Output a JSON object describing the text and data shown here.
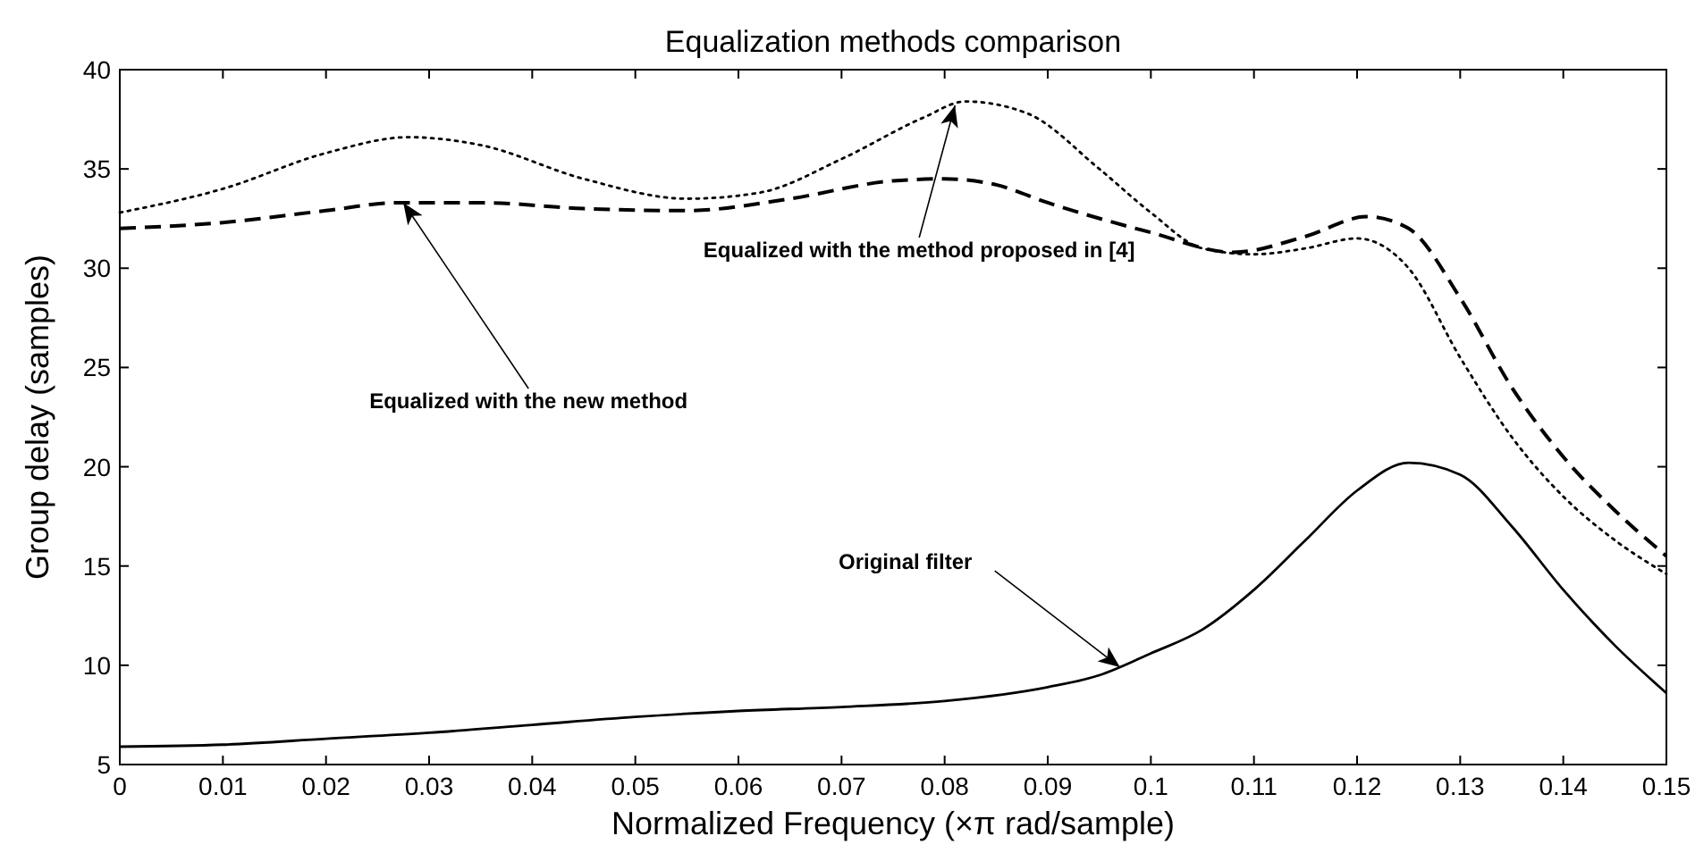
{
  "chart_data": {
    "type": "line",
    "title": "Equalization methods comparison",
    "xlabel": "Normalized Frequency (×π rad/sample)",
    "ylabel": "Group delay (samples)",
    "xlim": [
      0,
      0.15
    ],
    "ylim": [
      5,
      40
    ],
    "xticks": [
      0,
      0.01,
      0.02,
      0.03,
      0.04,
      0.05,
      0.06,
      0.07,
      0.08,
      0.09,
      0.1,
      0.11,
      0.12,
      0.13,
      0.14,
      0.15
    ],
    "yticks": [
      5,
      10,
      15,
      20,
      25,
      30,
      35,
      40
    ],
    "grid": false,
    "series": [
      {
        "color": "#000000",
        "line_style": "dotted",
        "x": [
          0,
          0.01,
          0.02,
          0.028,
          0.035,
          0.045,
          0.055,
          0.062,
          0.07,
          0.078,
          0.082,
          0.088,
          0.095,
          0.1,
          0.105,
          0.11,
          0.115,
          0.12,
          0.125,
          0.13,
          0.135,
          0.14,
          0.145,
          0.15
        ],
        "values": [
          32.8,
          34.0,
          35.8,
          36.6,
          36.2,
          34.5,
          33.5,
          33.8,
          35.5,
          37.6,
          38.4,
          37.8,
          35.0,
          32.8,
          31.0,
          30.7,
          31.0,
          31.5,
          30.0,
          25.5,
          21.5,
          18.5,
          16.3,
          14.6
        ]
      },
      {
        "color": "#000000",
        "line_style": "dashed",
        "x": [
          0,
          0.01,
          0.02,
          0.027,
          0.035,
          0.045,
          0.055,
          0.065,
          0.075,
          0.08,
          0.085,
          0.09,
          0.1,
          0.108,
          0.115,
          0.121,
          0.125,
          0.13,
          0.135,
          0.14,
          0.145,
          0.15
        ],
        "values": [
          32.0,
          32.3,
          32.9,
          33.3,
          33.3,
          33.0,
          32.9,
          33.5,
          34.4,
          34.5,
          34.2,
          33.3,
          31.8,
          30.8,
          31.6,
          32.6,
          32.0,
          28.5,
          24.0,
          20.5,
          17.8,
          15.5
        ]
      },
      {
        "color": "#000000",
        "line_style": "solid",
        "x": [
          0,
          0.01,
          0.02,
          0.03,
          0.04,
          0.05,
          0.06,
          0.07,
          0.08,
          0.09,
          0.095,
          0.1,
          0.105,
          0.11,
          0.115,
          0.12,
          0.125,
          0.13,
          0.135,
          0.14,
          0.145,
          0.15
        ],
        "values": [
          5.9,
          6.0,
          6.3,
          6.6,
          7.0,
          7.4,
          7.7,
          7.9,
          8.2,
          8.9,
          9.5,
          10.6,
          11.8,
          13.8,
          16.3,
          18.8,
          20.2,
          19.6,
          17.0,
          13.8,
          11.0,
          8.6
        ]
      }
    ],
    "annotations": [
      {
        "text": "Equalized with the new method",
        "x": 0.0275,
        "y": 33.3
      },
      {
        "text": "Equalized with the method proposed in [4]",
        "x": 0.081,
        "y": 38.2
      },
      {
        "text": "Original filter",
        "x": 0.097,
        "y": 9.9
      }
    ]
  }
}
